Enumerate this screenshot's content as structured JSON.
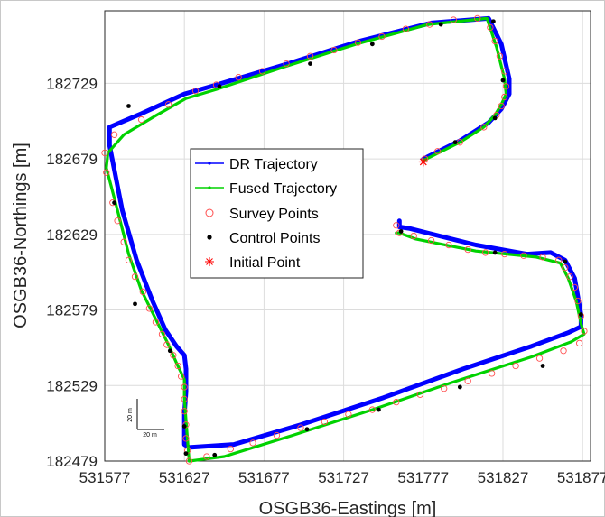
{
  "chart_data": {
    "type": "line",
    "xlabel": "OSGB36-Eastings [m]",
    "ylabel": "OSGB36-Northings [m]",
    "xlim": [
      531577,
      531882
    ],
    "ylim": [
      182479,
      182777
    ],
    "xticks": [
      531577,
      531627,
      531677,
      531727,
      531777,
      531827,
      531877
    ],
    "yticks": [
      182479,
      182529,
      182579,
      182629,
      182679,
      182729
    ],
    "grid": true,
    "legend_position": "upper-left-inside",
    "legend": [
      {
        "label": "DR Trajectory",
        "key": "dr"
      },
      {
        "label": "Fused Trajectory",
        "key": "fused"
      },
      {
        "label": "Survey Points",
        "key": "survey"
      },
      {
        "label": "Control Points",
        "key": "control"
      },
      {
        "label": "Initial Point",
        "key": "initial"
      }
    ],
    "colors": {
      "dr": "#0000ff",
      "fused": "#00d200",
      "survey": "#ff4d4d",
      "control": "#000000",
      "initial": "#ff0000"
    },
    "scale_bar": {
      "x_label": "20 m",
      "y_label": "20 m"
    },
    "series": [
      {
        "name": "DR Trajectory",
        "key": "dr",
        "x": [
          531777,
          531800,
          531818,
          531826,
          531831,
          531831,
          531826,
          531818,
          531782,
          531737,
          531692,
          531647,
          531627,
          531600,
          531580,
          531580,
          531588,
          531597,
          531607,
          531615,
          531622,
          531627,
          531628,
          531628,
          531627,
          531627,
          531630,
          531658,
          531700,
          531752,
          531802,
          531845,
          531868,
          531876,
          531876,
          531872,
          531866,
          531857,
          531842,
          531810,
          531768,
          531762,
          531762
        ],
        "y": [
          182679,
          182691,
          182703,
          182712,
          182722,
          182732,
          182755,
          182772,
          182769,
          182757,
          182742,
          182728,
          182722,
          182709,
          182700,
          182688,
          182645,
          182612,
          182585,
          182566,
          182555,
          182549,
          182540,
          182525,
          182510,
          182490,
          182488,
          182490,
          182503,
          182521,
          182540,
          182555,
          182564,
          182568,
          182576,
          182600,
          182612,
          182617,
          182616,
          182622,
          182633,
          182634,
          182638
        ]
      },
      {
        "name": "Fused Trajectory",
        "key": "fused",
        "x": [
          531777,
          531800,
          531815,
          531822,
          531826,
          531829,
          531828,
          531823,
          531817,
          531780,
          531735,
          531690,
          531647,
          531628,
          531608,
          531589,
          531579,
          531578,
          531585,
          531592,
          531600,
          531609,
          531617,
          531622,
          531627,
          531627,
          531628,
          531629,
          531630,
          531652,
          531695,
          531745,
          531795,
          531845,
          531870,
          531878,
          531876,
          531873,
          531868,
          531863,
          531848,
          531810,
          531772,
          531762,
          531760
        ],
        "y": [
          182678,
          182690,
          182700,
          182708,
          182715,
          182722,
          182732,
          182753,
          182772,
          182768,
          182755,
          182740,
          182725,
          182719,
          182707,
          182695,
          182683,
          182673,
          182645,
          182616,
          182592,
          182573,
          182556,
          182544,
          182533,
          182521,
          182506,
          182493,
          182479,
          182482,
          182496,
          182513,
          182531,
          182548,
          182558,
          182563,
          182570,
          182585,
          182600,
          182610,
          182614,
          182618,
          182626,
          182630,
          182630
        ]
      }
    ],
    "survey_points": {
      "x": [
        531778,
        531786,
        531800,
        531815,
        531823,
        531826,
        531828,
        531829,
        531828,
        531825,
        531822,
        531819,
        531811,
        531796,
        531781,
        531766,
        531751,
        531736,
        531721,
        531706,
        531691,
        531676,
        531661,
        531647,
        531634,
        531617,
        531600,
        531583,
        531577,
        531578,
        531582,
        531585,
        531589,
        531592,
        531596,
        531601,
        531605,
        531609,
        531613,
        531616,
        531620,
        531623,
        531625,
        531627,
        531627,
        531627,
        531628,
        531628,
        531629,
        531630,
        531641,
        531656,
        531670,
        531685,
        531700,
        531715,
        531730,
        531745,
        531760,
        531775,
        531790,
        531805,
        531820,
        531835,
        531850,
        531865,
        531875,
        531878,
        531876,
        531874,
        531872,
        531869,
        531866,
        531862,
        531852,
        531840,
        531828,
        531816,
        531805,
        531793,
        531782,
        531771,
        531762,
        531760
      ],
      "y": [
        182679,
        182684,
        182690,
        182700,
        182708,
        182714,
        182720,
        182727,
        182737,
        182747,
        182757,
        182766,
        182772,
        182771,
        182768,
        182765,
        182760,
        182756,
        182751,
        182747,
        182742,
        182737,
        182733,
        182728,
        182724,
        182715,
        182705,
        182695,
        182683,
        182670,
        182650,
        182638,
        182624,
        182612,
        182601,
        182591,
        182580,
        182571,
        182563,
        182556,
        182549,
        182542,
        182535,
        182528,
        182520,
        182512,
        182503,
        182494,
        182486,
        182479,
        182482,
        182487,
        182491,
        182496,
        182501,
        182505,
        182510,
        182513,
        182518,
        182523,
        182527,
        182532,
        182537,
        182542,
        182547,
        182552,
        182557,
        182565,
        182575,
        182585,
        182594,
        182601,
        182607,
        182612,
        182614,
        182615,
        182616,
        182617,
        182619,
        182622,
        182625,
        182628,
        182630,
        182635
      ]
    },
    "control_points": {
      "x": [
        531797,
        531822,
        531827,
        531821,
        531788,
        531745,
        531706,
        531649,
        531592,
        531583,
        531596,
        531618,
        531627,
        531628,
        531646,
        531704,
        531749,
        531800,
        531852,
        531876,
        531866,
        531822,
        531763
      ],
      "y": [
        182690,
        182706,
        182731,
        182770,
        182768,
        182755,
        182742,
        182727,
        182714,
        182650,
        182583,
        182552,
        182502,
        182484,
        182483,
        182500,
        182513,
        182528,
        182542,
        182576,
        182611,
        182617,
        182631
      ]
    },
    "initial_point": {
      "x": 531777,
      "y": 182677
    }
  }
}
